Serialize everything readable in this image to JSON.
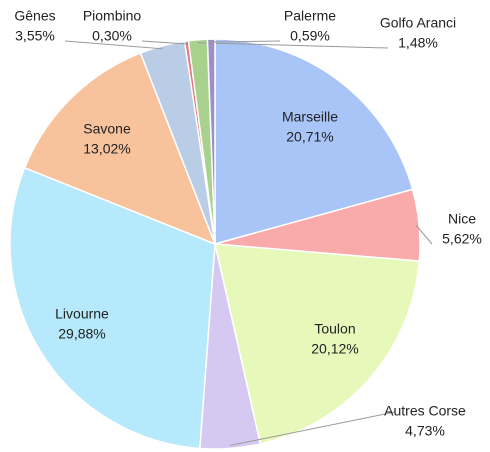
{
  "chart_data": {
    "type": "pie",
    "categories": [
      "Marseille",
      "Nice",
      "Toulon",
      "Autres Corse",
      "Livourne",
      "Savone",
      "Gênes",
      "Piombino",
      "Golfo Aranci",
      "Palerme"
    ],
    "values": [
      20.71,
      5.62,
      20.12,
      4.73,
      29.88,
      13.02,
      3.55,
      0.3,
      1.48,
      0.59
    ],
    "value_labels": [
      "20,71%",
      "5,62%",
      "20,12%",
      "4,73%",
      "29,88%",
      "13,02%",
      "3,55%",
      "0,30%",
      "1,48%",
      "0,59%"
    ],
    "colors": [
      "#a9c4f7",
      "#f9aaaa",
      "#e7f8bb",
      "#d5c8f1",
      "#b6e9fb",
      "#f8c39c",
      "#b9cde6",
      "#e8747c",
      "#a9d18e",
      "#9d90c6"
    ]
  }
}
